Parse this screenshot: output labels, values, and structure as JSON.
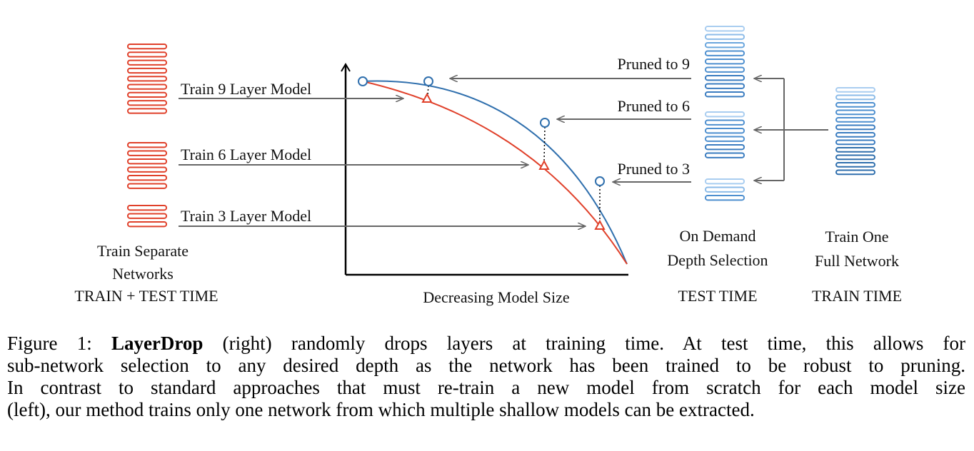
{
  "figure": {
    "left_labels": [
      "Train 9 Layer Model",
      "Train 6 Layer Model",
      "Train 3 Layer Model"
    ],
    "left_caption": [
      "Train Separate",
      "Networks",
      "TRAIN + TEST TIME"
    ],
    "axis_label": "Decreasing Model Size",
    "pruned_labels": [
      "Pruned to 9",
      "Pruned to 6",
      "Pruned to 3"
    ],
    "test_caption": [
      "On Demand",
      "Depth Selection",
      "TEST TIME"
    ],
    "train_caption": [
      "Train One",
      "Full Network",
      "TRAIN TIME"
    ]
  },
  "caption": {
    "prefix": "Figure 1:",
    "bold": "LayerDrop",
    "lines": [
      "(right) randomly drops layers at training time.  At test time, this allows for",
      "sub-network selection to any desired depth as the network has been trained to be robust to pruning.",
      "In contrast to standard approaches that must re-train a new model from scratch for each model size",
      "(left), our method trains only one network from which multiple shallow models can be extracted."
    ]
  }
}
